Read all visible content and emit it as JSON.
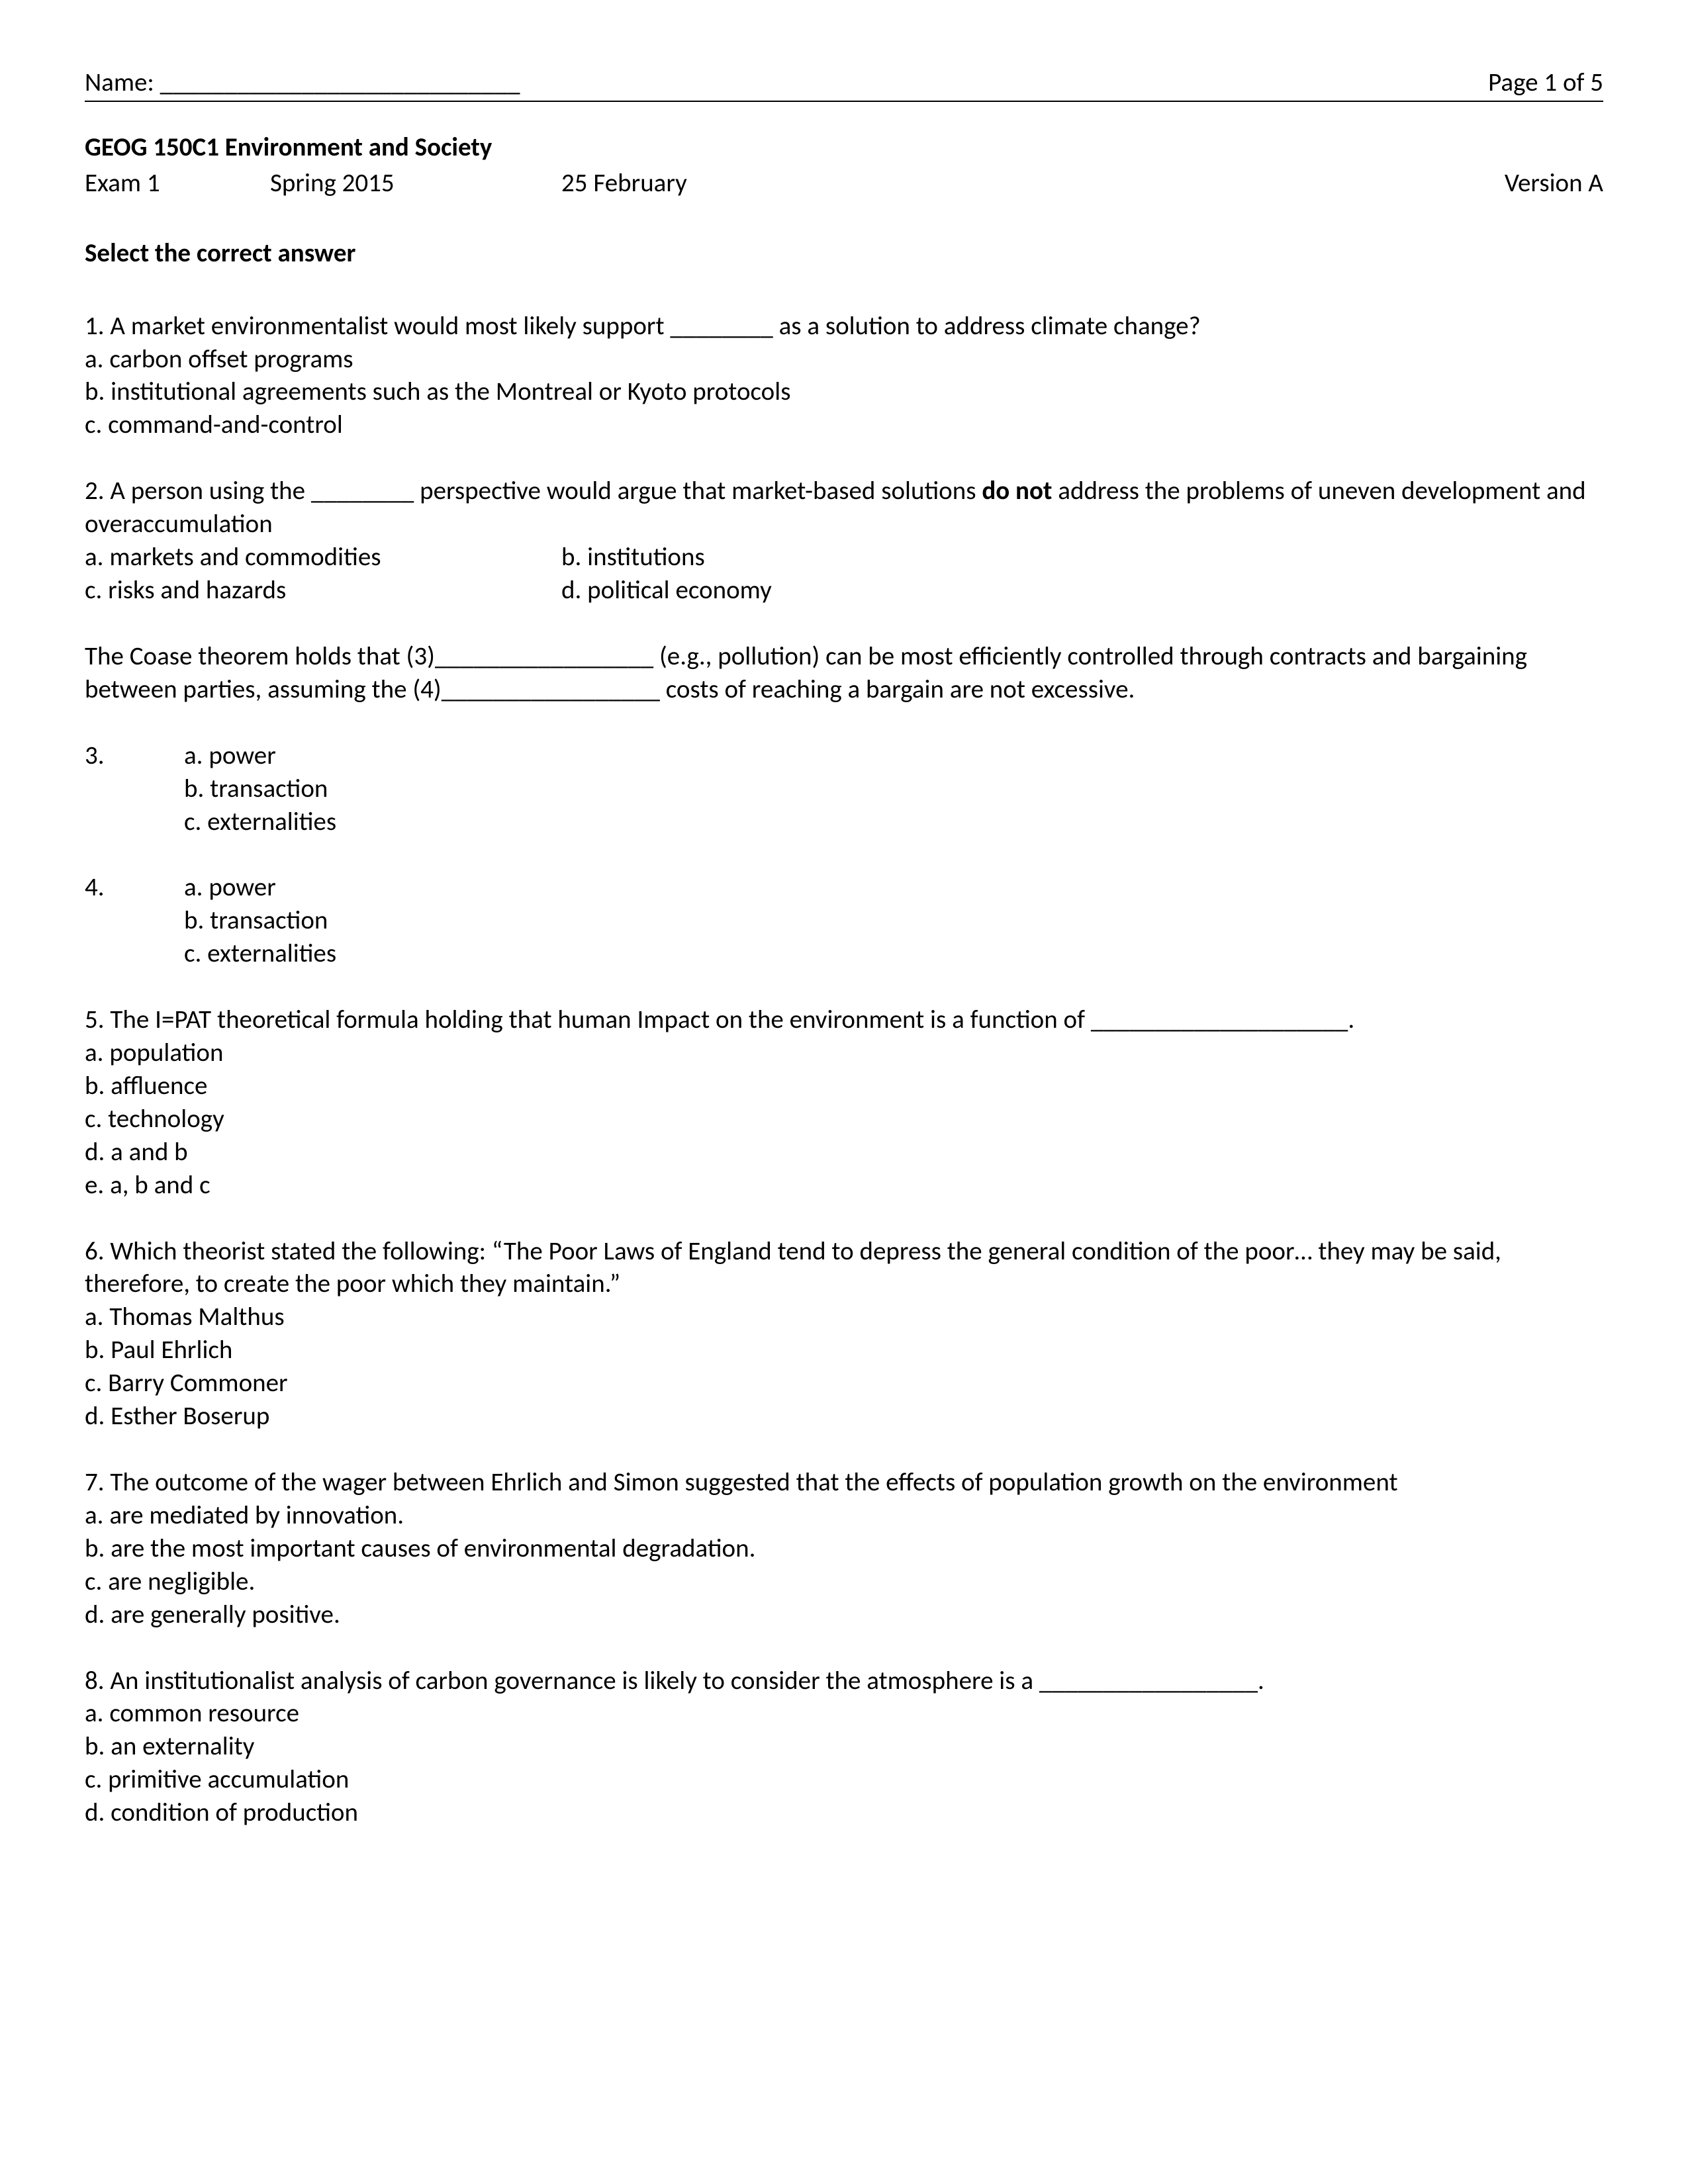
{
  "header": {
    "name_label": "Name: ____________________________",
    "page_label": "Page 1 of 5"
  },
  "course_title": "GEOG 150C1 Environment and Society",
  "exam_info": {
    "exam": "Exam 1",
    "semester": "Spring 2015",
    "date": "25 February",
    "version": "Version A"
  },
  "instruction": "Select the correct answer",
  "q1": {
    "text": "1. A market environmentalist would most likely support ________ as a solution to address climate change?",
    "a": "a. carbon offset programs",
    "b": "b. institutional agreements such as the Montreal or Kyoto protocols",
    "c": "c. command-and-control"
  },
  "q2": {
    "text_before": "2. A person using the ________ perspective would argue that market-based solutions ",
    "bold": "do not",
    "text_after": " address the problems of uneven development and overaccumulation",
    "a": "a. markets and commodities",
    "b": "b. institutions",
    "c": "c. risks and hazards",
    "d": "d. political economy"
  },
  "coase_intro": "The Coase theorem holds that (3)_________________ (e.g., pollution) can be most efficiently controlled through contracts and bargaining between parties, assuming the (4)_________________ costs of reaching a bargain are not excessive.",
  "q3": {
    "num": "3.",
    "a": "a. power",
    "b": "b. transaction",
    "c": "c. externalities"
  },
  "q4": {
    "num": "4.",
    "a": "a. power",
    "b": "b. transaction",
    "c": "c. externalities"
  },
  "q5": {
    "text": "5. The I=PAT theoretical formula holding that human Impact on the environment is a function of ____________________.",
    "a": "a. population",
    "b": "b. affluence",
    "c": "c. technology",
    "d": "d. a and b",
    "e": "e. a, b and c"
  },
  "q6": {
    "text": "6. Which theorist stated the following:  “The Poor Laws of England tend to depress the general condition of the poor… they may be said, therefore, to create the poor which they maintain.”",
    "a": "a. Thomas Malthus",
    "b": "b. Paul Ehrlich",
    "c": "c. Barry Commoner",
    "d": "d. Esther Boserup"
  },
  "q7": {
    "text": "7. The outcome of the wager between Ehrlich and Simon suggested that the effects of population growth on the environment",
    "a": "a. are mediated by innovation.",
    "b": "b. are the most important causes of environmental degradation.",
    "c": "c. are negligible.",
    "d": "d. are generally positive."
  },
  "q8": {
    "text": "8. An institutionalist analysis of carbon governance is likely to consider the atmosphere is a _________________.",
    "a": "a. common resource",
    "b": "b. an externality",
    "c": "c. primitive accumulation",
    "d": "d. condition of production"
  }
}
